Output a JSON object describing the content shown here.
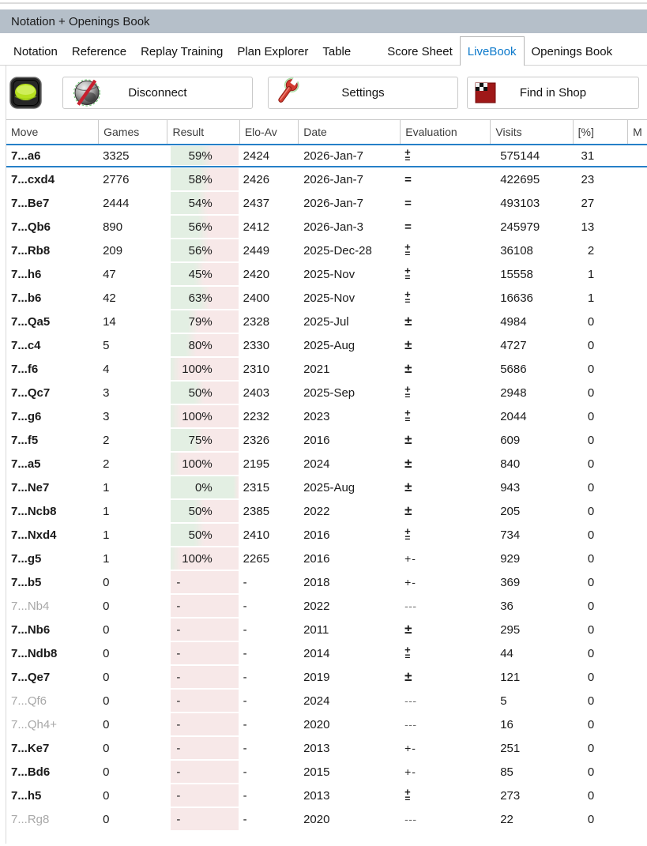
{
  "window": {
    "title": "Notation + Openings Book"
  },
  "tabs": [
    {
      "label": "Notation",
      "active": false,
      "gap_before": false
    },
    {
      "label": "Reference",
      "active": false,
      "gap_before": false
    },
    {
      "label": "Replay Training",
      "active": false,
      "gap_before": false
    },
    {
      "label": "Plan Explorer",
      "active": false,
      "gap_before": false
    },
    {
      "label": "Table",
      "active": false,
      "gap_before": false
    },
    {
      "label": "Score Sheet",
      "active": false,
      "gap_before": true
    },
    {
      "label": "LiveBook",
      "active": true,
      "gap_before": false
    },
    {
      "label": "Openings Book",
      "active": false,
      "gap_before": false
    }
  ],
  "toolbar": {
    "connection_state": "connected",
    "disconnect_label": "Disconnect",
    "settings_label": "Settings",
    "shop_label": "Find in Shop"
  },
  "table": {
    "columns": [
      "Move",
      "Games",
      "Result",
      "Elo-Av",
      "Date",
      "Evaluation",
      "Visits",
      "[%]",
      "M"
    ],
    "rows": [
      {
        "move": "7...a6",
        "games": "3325",
        "result": "59%",
        "green": 0.53,
        "elo": "2424",
        "date": "2026-Jan-7",
        "eval": "+=",
        "visits": "575144",
        "pct": "31",
        "selected": true,
        "gray": false
      },
      {
        "move": "7...cxd4",
        "games": "2776",
        "result": "58%",
        "green": 0.5,
        "elo": "2426",
        "date": "2026-Jan-7",
        "eval": "=",
        "visits": "422695",
        "pct": "23",
        "selected": false,
        "gray": false
      },
      {
        "move": "7...Be7",
        "games": "2444",
        "result": "54%",
        "green": 0.47,
        "elo": "2437",
        "date": "2026-Jan-7",
        "eval": "=",
        "visits": "493103",
        "pct": "27",
        "selected": false,
        "gray": false
      },
      {
        "move": "7...Qb6",
        "games": "890",
        "result": "56%",
        "green": 0.48,
        "elo": "2412",
        "date": "2026-Jan-3",
        "eval": "=",
        "visits": "245979",
        "pct": "13",
        "selected": false,
        "gray": false
      },
      {
        "move": "7...Rb8",
        "games": "209",
        "result": "56%",
        "green": 0.48,
        "elo": "2449",
        "date": "2025-Dec-28",
        "eval": "+=",
        "visits": "36108",
        "pct": "2",
        "selected": false,
        "gray": false
      },
      {
        "move": "7...h6",
        "games": "47",
        "result": "45%",
        "green": 0.42,
        "elo": "2420",
        "date": "2025-Nov",
        "eval": "+=",
        "visits": "15558",
        "pct": "1",
        "selected": false,
        "gray": false
      },
      {
        "move": "7...b6",
        "games": "42",
        "result": "63%",
        "green": 0.5,
        "elo": "2400",
        "date": "2025-Nov",
        "eval": "+=",
        "visits": "16636",
        "pct": "1",
        "selected": false,
        "gray": false
      },
      {
        "move": "7...Qa5",
        "games": "14",
        "result": "79%",
        "green": 0.33,
        "elo": "2328",
        "date": "2025-Jul",
        "eval": "±",
        "visits": "4984",
        "pct": "0",
        "selected": false,
        "gray": false
      },
      {
        "move": "7...c4",
        "games": "5",
        "result": "80%",
        "green": 0.3,
        "elo": "2330",
        "date": "2025-Aug",
        "eval": "±",
        "visits": "4727",
        "pct": "0",
        "selected": false,
        "gray": false
      },
      {
        "move": "7...f6",
        "games": "4",
        "result": "100%",
        "green": 0.07,
        "elo": "2310",
        "date": "2021",
        "eval": "±",
        "visits": "5686",
        "pct": "0",
        "selected": false,
        "gray": false
      },
      {
        "move": "7...Qc7",
        "games": "3",
        "result": "50%",
        "green": 0.42,
        "elo": "2403",
        "date": "2025-Sep",
        "eval": "+=",
        "visits": "2948",
        "pct": "0",
        "selected": false,
        "gray": false
      },
      {
        "move": "7...g6",
        "games": "3",
        "result": "100%",
        "green": 0.07,
        "elo": "2232",
        "date": "2023",
        "eval": "+=",
        "visits": "2044",
        "pct": "0",
        "selected": false,
        "gray": false
      },
      {
        "move": "7...f5",
        "games": "2",
        "result": "75%",
        "green": 0.4,
        "elo": "2326",
        "date": "2016",
        "eval": "±",
        "visits": "609",
        "pct": "0",
        "selected": false,
        "gray": false
      },
      {
        "move": "7...a5",
        "games": "2",
        "result": "100%",
        "green": 0.07,
        "elo": "2195",
        "date": "2024",
        "eval": "±",
        "visits": "840",
        "pct": "0",
        "selected": false,
        "gray": false
      },
      {
        "move": "7...Ne7",
        "games": "1",
        "result": "0%",
        "green": 1.0,
        "elo": "2315",
        "date": "2025-Aug",
        "eval": "±",
        "visits": "943",
        "pct": "0",
        "selected": false,
        "gray": false
      },
      {
        "move": "7...Ncb8",
        "games": "1",
        "result": "50%",
        "green": 0.42,
        "elo": "2385",
        "date": "2022",
        "eval": "±",
        "visits": "205",
        "pct": "0",
        "selected": false,
        "gray": false
      },
      {
        "move": "7...Nxd4",
        "games": "1",
        "result": "50%",
        "green": 0.42,
        "elo": "2410",
        "date": "2016",
        "eval": "+=",
        "visits": "734",
        "pct": "0",
        "selected": false,
        "gray": false
      },
      {
        "move": "7...g5",
        "games": "1",
        "result": "100%",
        "green": 0.07,
        "elo": "2265",
        "date": "2016",
        "eval": "+-",
        "visits": "929",
        "pct": "0",
        "selected": false,
        "gray": false
      },
      {
        "move": "7...b5",
        "games": "0",
        "result": "-",
        "green": 0,
        "elo": "-",
        "date": "2018",
        "eval": "+-",
        "visits": "369",
        "pct": "0",
        "selected": false,
        "gray": false
      },
      {
        "move": "7...Nb4",
        "games": "0",
        "result": "-",
        "green": 0,
        "elo": "-",
        "date": "2022",
        "eval": "---",
        "visits": "36",
        "pct": "0",
        "selected": false,
        "gray": true
      },
      {
        "move": "7...Nb6",
        "games": "0",
        "result": "-",
        "green": 0,
        "elo": "-",
        "date": "2011",
        "eval": "±",
        "visits": "295",
        "pct": "0",
        "selected": false,
        "gray": false
      },
      {
        "move": "7...Ndb8",
        "games": "0",
        "result": "-",
        "green": 0,
        "elo": "-",
        "date": "2014",
        "eval": "+=",
        "visits": "44",
        "pct": "0",
        "selected": false,
        "gray": false
      },
      {
        "move": "7...Qe7",
        "games": "0",
        "result": "-",
        "green": 0,
        "elo": "-",
        "date": "2019",
        "eval": "±",
        "visits": "121",
        "pct": "0",
        "selected": false,
        "gray": false
      },
      {
        "move": "7...Qf6",
        "games": "0",
        "result": "-",
        "green": 0,
        "elo": "-",
        "date": "2024",
        "eval": "---",
        "visits": "5",
        "pct": "0",
        "selected": false,
        "gray": true
      },
      {
        "move": "7...Qh4+",
        "games": "0",
        "result": "-",
        "green": 0,
        "elo": "-",
        "date": "2020",
        "eval": "---",
        "visits": "16",
        "pct": "0",
        "selected": false,
        "gray": true
      },
      {
        "move": "7...Ke7",
        "games": "0",
        "result": "-",
        "green": 0,
        "elo": "-",
        "date": "2013",
        "eval": "+-",
        "visits": "251",
        "pct": "0",
        "selected": false,
        "gray": false
      },
      {
        "move": "7...Bd6",
        "games": "0",
        "result": "-",
        "green": 0,
        "elo": "-",
        "date": "2015",
        "eval": "+-",
        "visits": "85",
        "pct": "0",
        "selected": false,
        "gray": false
      },
      {
        "move": "7...h5",
        "games": "0",
        "result": "-",
        "green": 0,
        "elo": "-",
        "date": "2013",
        "eval": "+=",
        "visits": "273",
        "pct": "0",
        "selected": false,
        "gray": false
      },
      {
        "move": "7...Rg8",
        "games": "0",
        "result": "-",
        "green": 0,
        "elo": "-",
        "date": "2020",
        "eval": "---",
        "visits": "22",
        "pct": "0",
        "selected": false,
        "gray": true
      }
    ]
  },
  "colors": {
    "titlebar": "#b5bfc9",
    "tab_active_text": "#0c79cb",
    "selection_blue": "#2680c8",
    "result_green": "#e3efe3",
    "result_pink": "#f7e8e8"
  }
}
